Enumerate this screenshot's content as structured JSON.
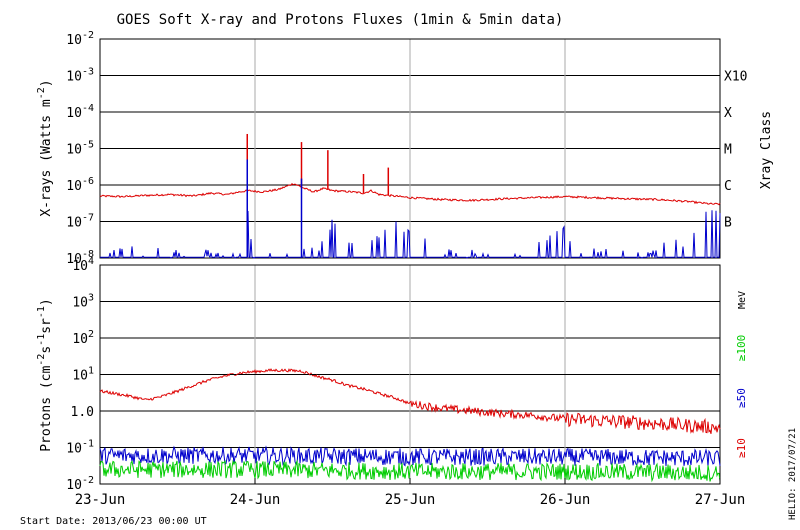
{
  "title": "GOES Soft X-ray and Protons Fluxes   (1min & 5min data)",
  "start_date": "Start Date: 2013/06/23 00:00 UT",
  "credit": "HELIO: 2017/07/21",
  "chart_data": [
    {
      "type": "line",
      "panel": "xray",
      "ylabel": "X-rays (Watts m",
      "ylabel_sup": "-2",
      "ylabel_end": ")",
      "yscale": "log",
      "ylim_exp": [
        -8,
        -2
      ],
      "ytick_exps": [
        -8,
        -7,
        -6,
        -5,
        -4,
        -3,
        -2
      ],
      "right_label": "Xray Class",
      "classes": [
        {
          "label": "B",
          "exp": -7
        },
        {
          "label": "C",
          "exp": -6
        },
        {
          "label": "M",
          "exp": -5
        },
        {
          "label": "X",
          "exp": -4
        },
        {
          "label": "X10",
          "exp": -3
        }
      ],
      "series": [
        {
          "color": "#dd0000",
          "x": [
            0,
            0.15,
            0.3,
            0.45,
            0.6,
            0.72,
            0.82,
            0.9,
            0.96,
            1.05,
            1.15,
            1.25,
            1.32,
            1.38,
            1.44,
            1.5,
            1.62,
            1.7,
            1.75,
            1.8,
            1.9,
            2.0,
            2.2,
            2.4,
            2.6,
            2.8,
            3.0,
            3.2,
            3.4,
            3.6,
            3.8,
            3.95,
            4.0
          ],
          "y": [
            5e-07,
            4.8e-07,
            5.2e-07,
            5.5e-07,
            5e-07,
            6e-07,
            5.5e-07,
            6.5e-07,
            7e-07,
            6.5e-07,
            7.5e-07,
            1.1e-06,
            8e-07,
            6.5e-07,
            8e-07,
            7e-07,
            6.5e-07,
            6e-07,
            7e-07,
            5.5e-07,
            5e-07,
            4.5e-07,
            4e-07,
            3.8e-07,
            4.2e-07,
            4.5e-07,
            4.8e-07,
            4.5e-07,
            4.2e-07,
            4e-07,
            3.5e-07,
            3e-07,
            3e-07
          ]
        },
        {
          "color": "#0000cc",
          "x": [
            0.25,
            0.35,
            0.55,
            0.88,
            0.92,
            0.96,
            0.98,
            1.2,
            1.3,
            1.35,
            1.42,
            1.52,
            1.6,
            1.65,
            1.7,
            1.78,
            1.82,
            1.85,
            2.2,
            2.5,
            2.7,
            2.95,
            3.0,
            3.05,
            3.2,
            3.5,
            3.6,
            3.65,
            3.8,
            3.88
          ],
          "y": [
            1.8e-08,
            1.6e-08,
            1.5e-08,
            1.4e-08,
            2.5e-08,
            2.5e-07,
            1.3e-08,
            1.4e-08,
            2e-08,
            1.6e-08,
            2.5e-08,
            1.5e-07,
            3e-08,
            2.5e-08,
            2e-08,
            3.5e-08,
            4.5e-08,
            1.5e-07,
            1.5e-08,
            1.4e-08,
            1.3e-08,
            6e-08,
            1.2e-07,
            1.4e-08,
            1.6e-08,
            1.3e-08,
            1.4e-08,
            5e-08,
            1.4e-08,
            2e-07
          ]
        }
      ],
      "flare_peaks": [
        {
          "x": 0.95,
          "y": 2.5e-05,
          "color": "#dd0000"
        },
        {
          "x": 1.3,
          "y": 1.5e-05,
          "color": "#dd0000"
        },
        {
          "x": 1.47,
          "y": 9e-06,
          "color": "#dd0000"
        },
        {
          "x": 1.7,
          "y": 2e-06,
          "color": "#dd0000"
        },
        {
          "x": 1.86,
          "y": 3e-06,
          "color": "#dd0000"
        },
        {
          "x": 0.95,
          "y": 5e-06,
          "color": "#0000cc"
        },
        {
          "x": 1.3,
          "y": 1.5e-06,
          "color": "#0000cc"
        }
      ]
    },
    {
      "type": "line",
      "panel": "protons",
      "ylabel": "Protons (cm",
      "ylabel_parts": [
        "-2",
        "s",
        "-1",
        "sr",
        "-1"
      ],
      "yscale": "log",
      "ylim_exp": [
        -2,
        4
      ],
      "ytick_labels": [
        "10^-2",
        "10^-1",
        "10^0",
        "10^1",
        "10^2",
        "10^3",
        "10^4"
      ],
      "threshold": 10,
      "mev_label": "MeV",
      "energy_labels": [
        {
          "label": "≥100",
          "color": "#00cc00"
        },
        {
          "label": "≥50",
          "color": "#0000cc"
        },
        {
          "label": "≥10",
          "color": "#dd0000"
        }
      ],
      "series": [
        {
          "name": "≥10",
          "color": "#dd0000",
          "x": [
            0,
            0.1,
            0.2,
            0.3,
            0.4,
            0.5,
            0.6,
            0.7,
            0.8,
            0.9,
            1.0,
            1.1,
            1.2,
            1.3,
            1.4,
            1.5,
            1.6,
            1.7,
            1.8,
            1.9,
            2.0,
            2.2,
            2.4,
            2.6,
            2.8,
            3.0,
            3.2,
            3.4,
            3.6,
            3.8,
            4.0
          ],
          "y": [
            3.5,
            3.0,
            2.5,
            2.0,
            2.5,
            3.5,
            5.0,
            7.0,
            9.0,
            11.0,
            12.0,
            13.0,
            13.0,
            12.5,
            9.0,
            7.0,
            5.0,
            4.0,
            3.0,
            2.3,
            1.6,
            1.2,
            1.0,
            0.85,
            0.75,
            0.6,
            0.55,
            0.5,
            0.45,
            0.4,
            0.35
          ]
        },
        {
          "name": "≥50",
          "color": "#0000cc",
          "x": [
            0,
            1,
            2,
            3,
            4
          ],
          "y": [
            0.06,
            0.06,
            0.055,
            0.055,
            0.05
          ]
        },
        {
          "name": "≥100",
          "color": "#00cc00",
          "x": [
            0,
            1,
            2,
            3,
            4
          ],
          "y": [
            0.025,
            0.025,
            0.022,
            0.022,
            0.02
          ]
        }
      ]
    }
  ],
  "x_axis": {
    "tick_labels": [
      "23-Jun",
      "24-Jun",
      "25-Jun",
      "26-Jun",
      "27-Jun"
    ],
    "range_days": [
      0,
      4
    ]
  }
}
